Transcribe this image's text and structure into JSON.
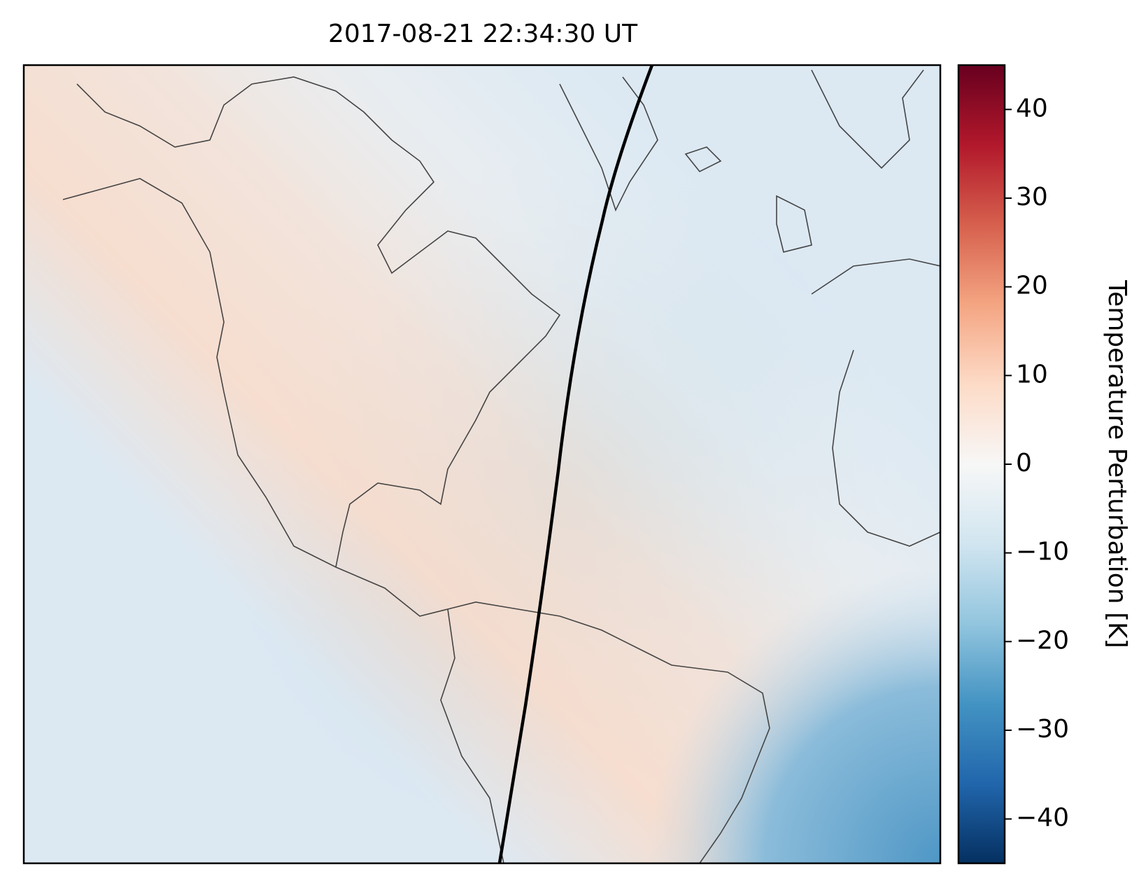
{
  "title": "2017-08-21 22:34:30 UT",
  "colorbar": {
    "label": "Temperature Perturbation [K]",
    "colormap": "RdBu_r",
    "lim": [
      -45,
      45
    ],
    "ticks": [
      {
        "value": -40,
        "label": "−40"
      },
      {
        "value": -30,
        "label": "−30"
      },
      {
        "value": -20,
        "label": "−20"
      },
      {
        "value": -10,
        "label": "−10"
      },
      0,
      10,
      20,
      30,
      40
    ]
  }
}
